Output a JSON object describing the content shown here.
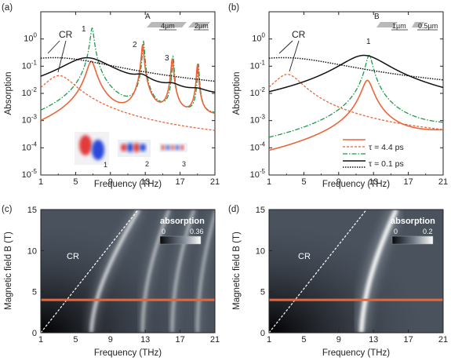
{
  "figure": {
    "panels": [
      "(a)",
      "(b)",
      "(c)",
      "(d)"
    ]
  },
  "colors": {
    "tau_long": "#e8663a",
    "tau_long_dash": "#e8663a",
    "tau_long_green": "#1f9a4a",
    "tau_short": "#111111",
    "heat_dark": "#0e0f14",
    "heat_mid": "#5a6370",
    "heat_bright": "#ffffff",
    "cr_line": "#ffffff",
    "cut_line": "#e8663a"
  },
  "chart_data": [
    {
      "panel": "(a)",
      "type": "line",
      "xlabel": "Frequency (THz)",
      "ylabel": "Absorption",
      "xlim": [
        1,
        21
      ],
      "ylim": [
        1e-05,
        10
      ],
      "yscale": "log",
      "x_ticks": [
        "1",
        "5",
        "9",
        "13",
        "17",
        "21"
      ],
      "y_ticks": [
        "10^-5",
        "10^-4",
        "10^-3",
        "10^-2",
        "10^-1",
        "10^0"
      ],
      "annotations": [
        "CR",
        "1",
        "2",
        "3",
        "A",
        "4µm",
        "2µm"
      ],
      "inset_mode_labels": [
        "1",
        "2",
        "3"
      ],
      "series": [
        {
          "style": "orange-solid",
          "description_key": "tau_long_peaks",
          "peaks": [
            {
              "x": 6.8,
              "y": 0.15
            },
            {
              "x": 12.7,
              "y": 0.6
            },
            {
              "x": 16.1,
              "y": 0.18
            },
            {
              "x": 19.0,
              "y": 0.11
            }
          ]
        },
        {
          "style": "green-dashdot",
          "peaks": [
            {
              "x": 6.9,
              "y": 2.5
            },
            {
              "x": 12.8,
              "y": 0.8
            },
            {
              "x": 16.2,
              "y": 0.22
            },
            {
              "x": 19.1,
              "y": 0.12
            }
          ]
        },
        {
          "style": "orange-dash",
          "peak": {
            "x": 3.1,
            "y": 0.045
          }
        },
        {
          "style": "black-solid",
          "peak": {
            "x": 6.3,
            "y": 0.2
          }
        },
        {
          "style": "black-dot",
          "peak": {
            "x": 2.5,
            "y": 0.2
          }
        }
      ]
    },
    {
      "panel": "(b)",
      "type": "line",
      "xlabel": "Frequency (THz)",
      "ylabel": "Absorption",
      "xlim": [
        1,
        21
      ],
      "ylim": [
        1e-05,
        10
      ],
      "yscale": "log",
      "x_ticks": [
        "1",
        "5",
        "9",
        "13",
        "17",
        "21"
      ],
      "y_ticks": [
        "10^-5",
        "10^-4",
        "10^-3",
        "10^-2",
        "10^-1",
        "10^0"
      ],
      "annotations": [
        "CR",
        "1",
        "B",
        "1µm",
        "0.5µm"
      ],
      "legend": [
        {
          "label": "τ = 4.4 ps",
          "styles": [
            "orange-solid",
            "orange-dash",
            "green-dashdot"
          ]
        },
        {
          "label": "τ = 0.1 ps",
          "styles": [
            "black-solid",
            "black-dot"
          ]
        }
      ],
      "series": [
        {
          "style": "orange-solid",
          "peak": {
            "x": 12.3,
            "y": 0.03
          }
        },
        {
          "style": "green-dashdot",
          "peak": {
            "x": 12.5,
            "y": 0.25
          }
        },
        {
          "style": "orange-dash",
          "peak": {
            "x": 3.1,
            "y": 0.05
          }
        },
        {
          "style": "black-solid",
          "peak": {
            "x": 11.9,
            "y": 0.25
          }
        },
        {
          "style": "black-dot",
          "peak": {
            "x": 2.6,
            "y": 0.2
          }
        }
      ]
    },
    {
      "panel": "(c)",
      "type": "heatmap",
      "xlabel": "Frequency (THz)",
      "ylabel": "Magnetic field B (T)",
      "xlim": [
        1,
        21
      ],
      "ylim": [
        0,
        15
      ],
      "x_ticks": [
        "1",
        "5",
        "9",
        "13",
        "17",
        "21"
      ],
      "y_ticks": [
        "0",
        "5",
        "10",
        "15"
      ],
      "colorbar": {
        "title": "absorption",
        "min": "0",
        "max": "0.36"
      },
      "cr_label": "CR",
      "cut_B": 4,
      "ridges_at_B0": [
        6.8,
        12.7,
        16.1,
        19.0
      ]
    },
    {
      "panel": "(d)",
      "type": "heatmap",
      "xlabel": "Frequency (THz)",
      "ylabel": "Magnetic field B (T)",
      "xlim": [
        1,
        21
      ],
      "ylim": [
        0,
        15
      ],
      "x_ticks": [
        "1",
        "5",
        "9",
        "13",
        "17",
        "21"
      ],
      "y_ticks": [
        "0",
        "5",
        "10",
        "15"
      ],
      "colorbar": {
        "title": "absorption",
        "min": "0",
        "max": "0.2"
      },
      "cr_label": "CR",
      "cut_B": 4,
      "ridges_at_B0": [
        11.6
      ]
    }
  ]
}
